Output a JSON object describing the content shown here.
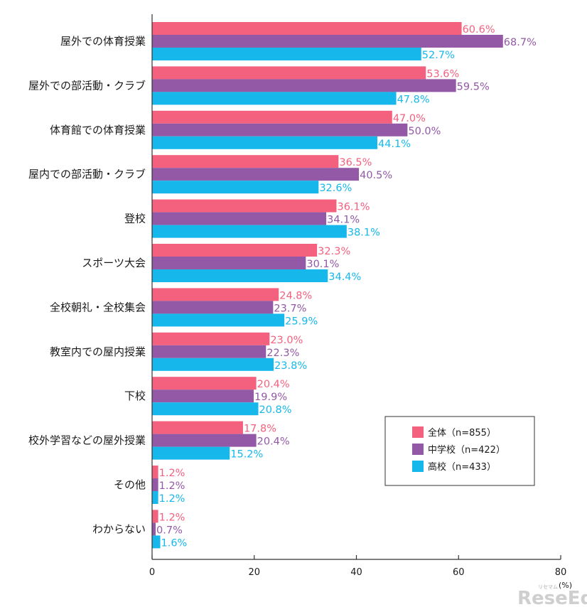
{
  "chart_data": {
    "type": "bar",
    "orientation": "horizontal",
    "categories": [
      "屋外での体育授業",
      "屋外での部活動・クラブ",
      "体育館での体育授業",
      "屋内での部活動・クラブ",
      "登校",
      "スポーツ大会",
      "全校朝礼・全校集会",
      "教室内での屋内授業",
      "下校",
      "校外学習などの屋外授業",
      "その他",
      "わからない"
    ],
    "series": [
      {
        "name": "全体（n=855）",
        "color": "#f4617f",
        "values": [
          60.6,
          53.6,
          47.0,
          36.5,
          36.1,
          32.3,
          24.8,
          23.0,
          20.4,
          17.8,
          1.2,
          1.2
        ],
        "labels": [
          "60.6%",
          "53.6%",
          "47.0%",
          "36.5%",
          "36.1%",
          "32.3%",
          "24.8%",
          "23.0%",
          "20.4%",
          "17.8%",
          "1.2%",
          "1.2%"
        ]
      },
      {
        "name": "中学校（n=422）",
        "color": "#9358a6",
        "values": [
          68.7,
          59.5,
          50.0,
          40.5,
          34.1,
          30.1,
          23.7,
          22.3,
          19.9,
          20.4,
          1.2,
          0.7
        ],
        "labels": [
          "68.7%",
          "59.5%",
          "50.0%",
          "40.5%",
          "34.1%",
          "30.1%",
          "23.7%",
          "22.3%",
          "19.9%",
          "20.4%",
          "1.2%",
          "0.7%"
        ]
      },
      {
        "name": "高校（n=433）",
        "color": "#16b8ec",
        "values": [
          52.7,
          47.8,
          44.1,
          32.6,
          38.1,
          34.4,
          25.9,
          23.8,
          20.8,
          15.2,
          1.2,
          1.6
        ],
        "labels": [
          "52.7%",
          "47.8%",
          "44.1%",
          "32.6%",
          "38.1%",
          "34.4%",
          "25.9%",
          "23.8%",
          "20.8%",
          "15.2%",
          "1.2%",
          "1.6%"
        ]
      }
    ],
    "xlim": [
      0,
      80
    ],
    "xticks": [
      0,
      20,
      40,
      60,
      80
    ],
    "xtick_labels": [
      "0",
      "20",
      "40",
      "60",
      "80"
    ],
    "unit": "(%)",
    "grid": false,
    "legend_position": "bottom-right"
  },
  "watermark": {
    "small": "リセマム",
    "big": "ReseEd"
  }
}
